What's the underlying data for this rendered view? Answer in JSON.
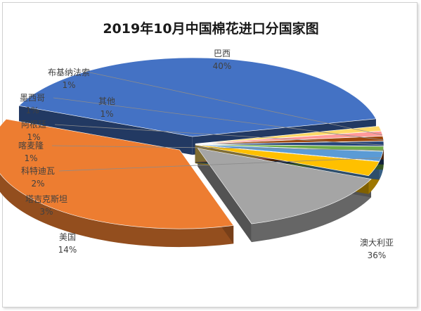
{
  "chart_data": {
    "type": "pie",
    "title": "2019年10月中国棉花进口分国家图",
    "slices": [
      {
        "name": "巴西",
        "value": 40,
        "label": "40%",
        "color": "#4472c4"
      },
      {
        "name": "澳大利亚",
        "value": 36,
        "label": "36%",
        "color": "#ed7d31"
      },
      {
        "name": "美国",
        "value": 14,
        "label": "14%",
        "color": "#a5a5a5"
      },
      {
        "name": "塔吉克斯坦",
        "value": 3,
        "label": "3%",
        "color": "#ffc000"
      },
      {
        "name": "科特迪瓦",
        "value": 2,
        "label": "2%",
        "color": "#5b9bd5"
      },
      {
        "name": "喀麦隆",
        "value": 1,
        "label": "1%",
        "color": "#70ad47"
      },
      {
        "name": "阿根廷",
        "value": 1,
        "label": "1%",
        "color": "#264478"
      },
      {
        "name": "墨西哥",
        "value": 1,
        "label": "1%",
        "color": "#9e480e"
      },
      {
        "name": "布基纳法索",
        "value": 1,
        "label": "1%",
        "color": "#ff9999"
      },
      {
        "name": "其他",
        "value": 1,
        "label": "1%",
        "color": "#ffd966"
      }
    ],
    "legend": "none",
    "exploded": true,
    "style": "3d"
  }
}
